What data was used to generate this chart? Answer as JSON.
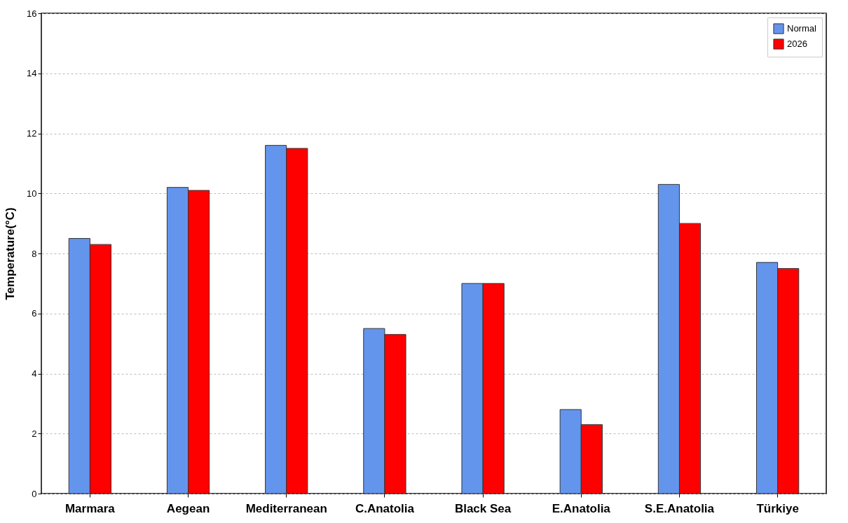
{
  "chart_data": {
    "type": "bar",
    "ylabel": "Temperature(°C)",
    "categories": [
      "Marmara",
      "Aegean",
      "Mediterranean",
      "C.Anatolia",
      "Black Sea",
      "E.Anatolia",
      "S.E.Anatolia",
      "Türkiye"
    ],
    "series": [
      {
        "name": "Normal",
        "color": "#6495ed",
        "values": [
          8.5,
          10.2,
          11.6,
          5.5,
          7.0,
          2.8,
          10.3,
          7.7
        ]
      },
      {
        "name": "2026",
        "color": "#ff0000",
        "values": [
          8.3,
          10.1,
          11.5,
          5.3,
          7.0,
          2.3,
          9.0,
          7.5
        ]
      }
    ],
    "ylim": [
      0,
      16
    ],
    "yticks": [
      0,
      2,
      4,
      6,
      8,
      10,
      12,
      14,
      16
    ],
    "grid": "y",
    "legend": "top right"
  }
}
